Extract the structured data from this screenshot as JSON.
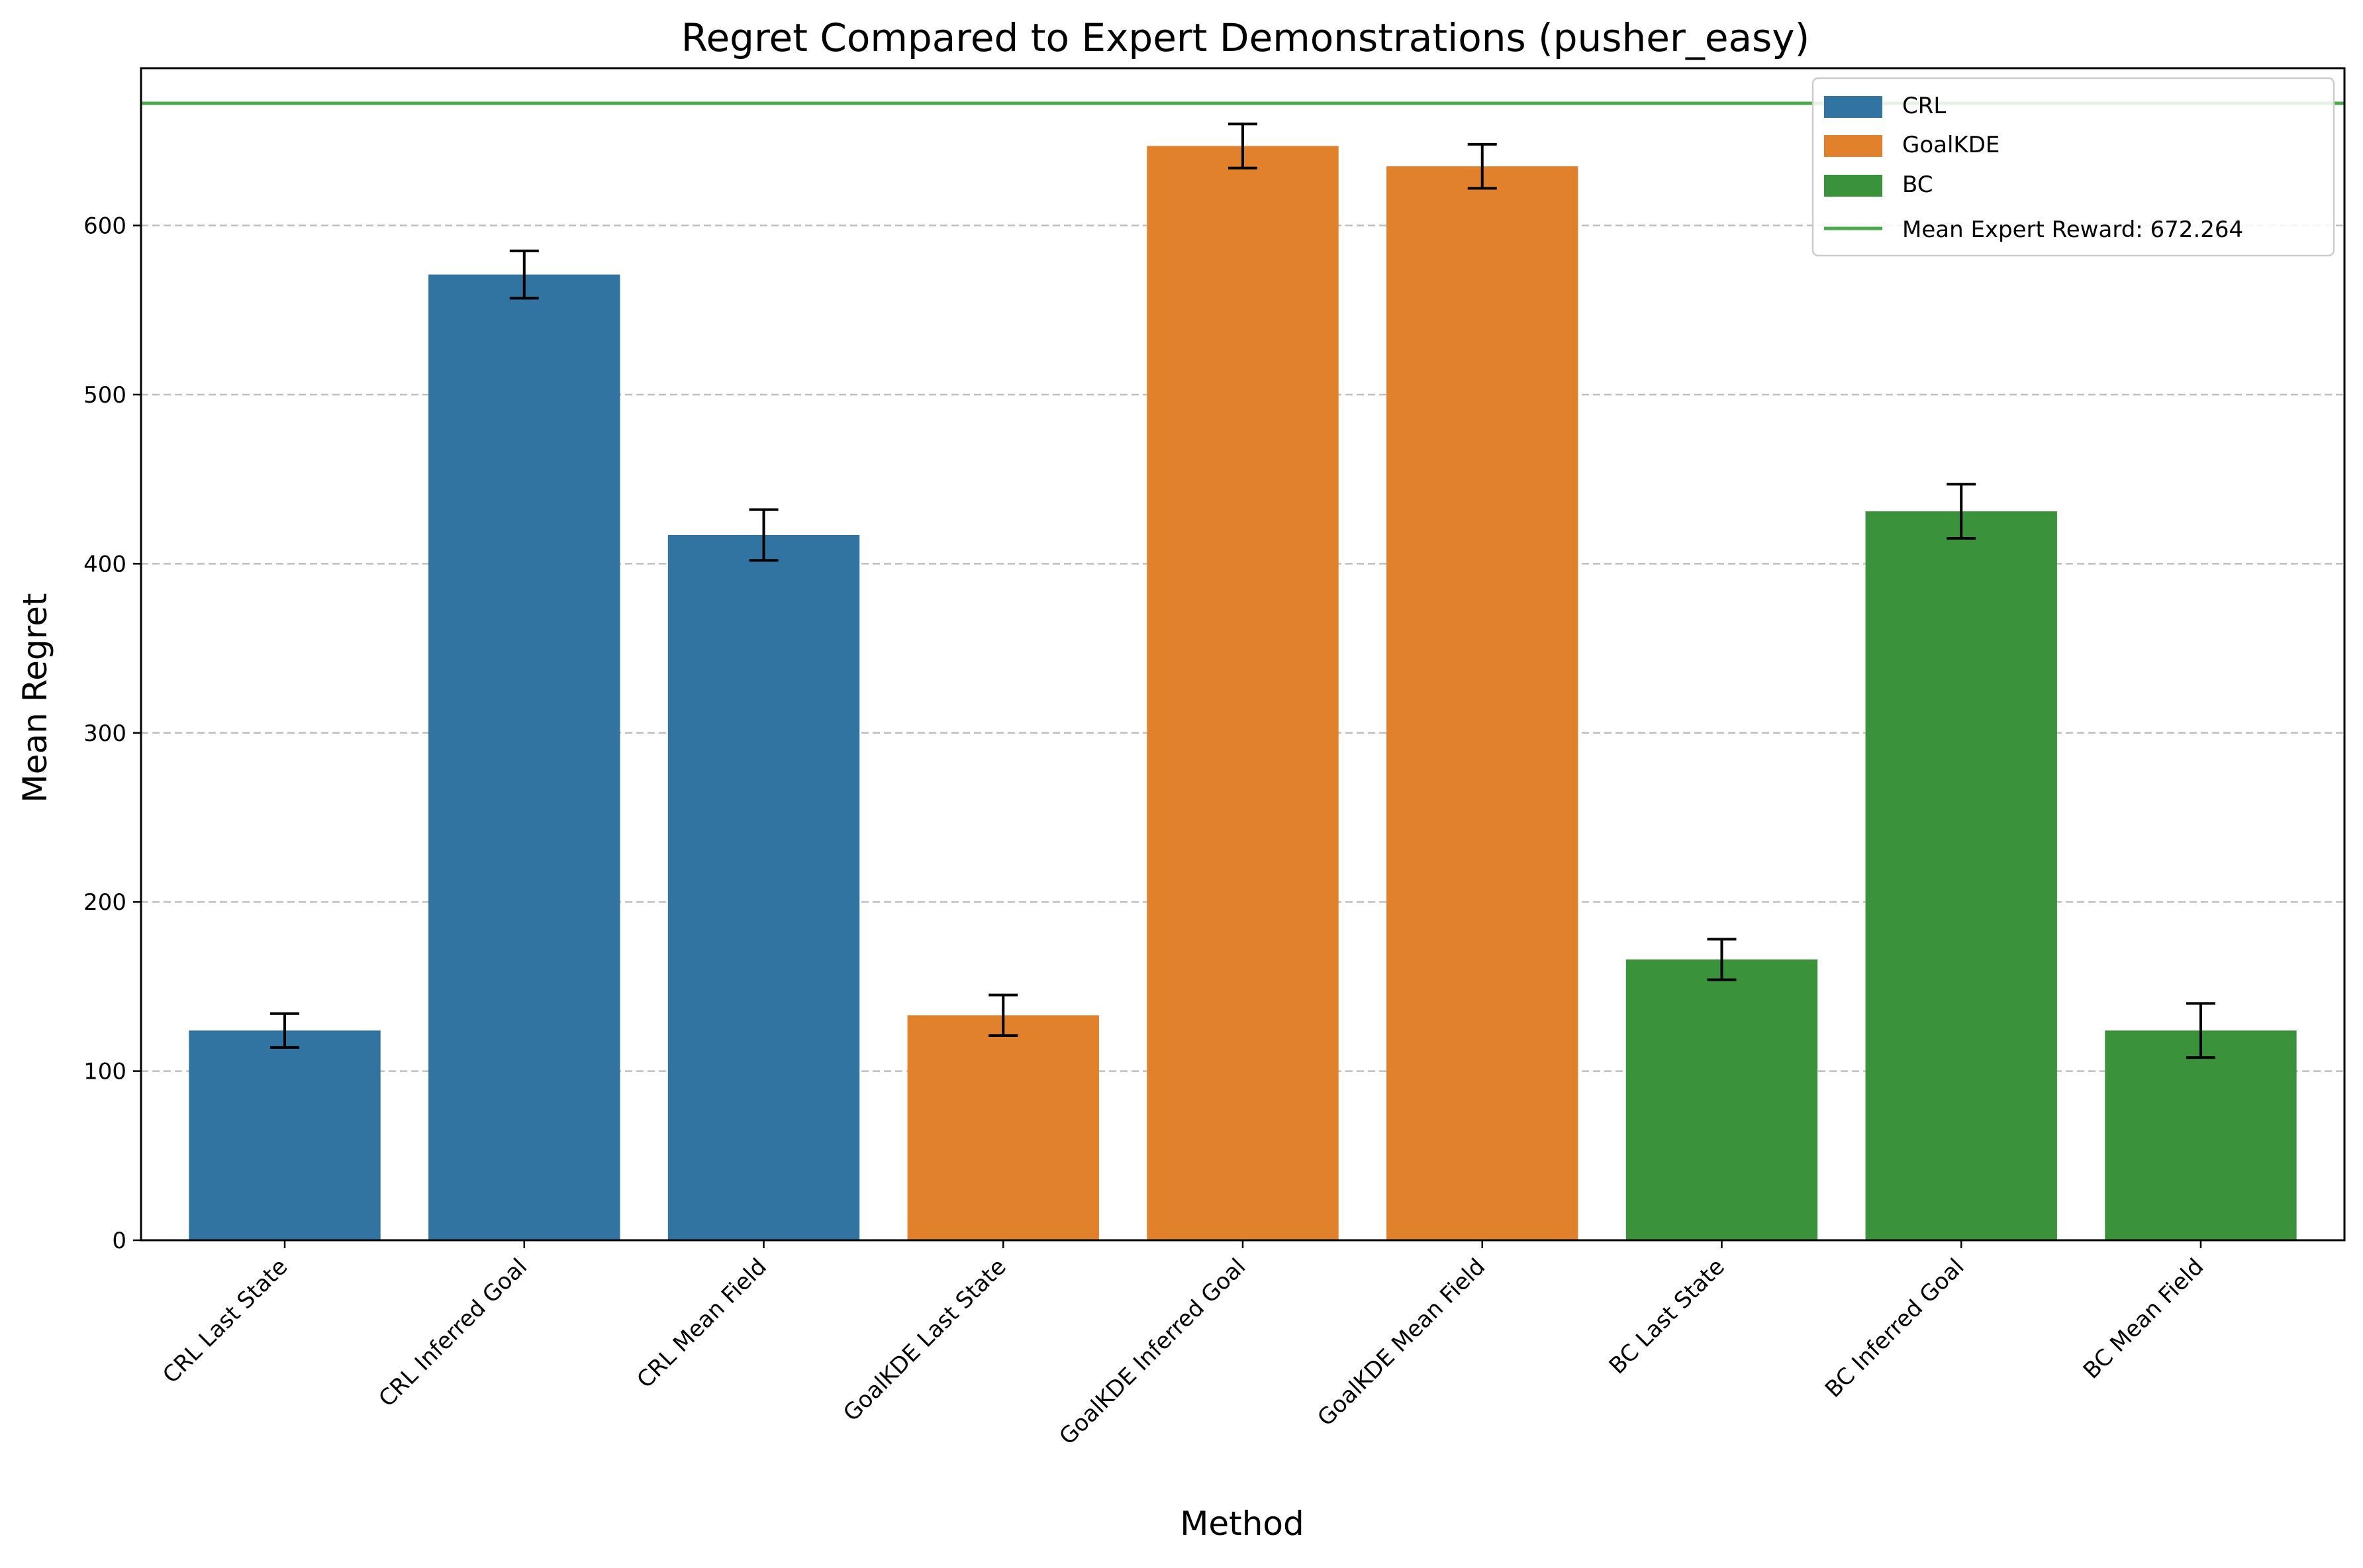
{
  "chart_data": {
    "type": "bar",
    "title": "Regret Compared to Expert Demonstrations (pusher_easy)",
    "xlabel": "Method",
    "ylabel": "Mean Regret",
    "ylim": [
      0,
      693
    ],
    "yticks": [
      0,
      100,
      200,
      300,
      400,
      500,
      600
    ],
    "grid": "y-dashed",
    "categories": [
      "CRL Last State",
      "CRL Inferred Goal",
      "CRL Mean Field",
      "GoalKDE Last State",
      "GoalKDE Inferred Goal",
      "GoalKDE Mean Field",
      "BC Last State",
      "BC Inferred Goal",
      "BC Mean Field"
    ],
    "values": [
      124,
      571,
      417,
      133,
      647,
      635,
      166,
      431,
      124
    ],
    "errors": [
      10,
      14,
      15,
      12,
      13,
      13,
      12,
      16,
      16
    ],
    "groups": [
      "CRL",
      "CRL",
      "CRL",
      "GoalKDE",
      "GoalKDE",
      "GoalKDE",
      "BC",
      "BC",
      "BC"
    ],
    "legend": {
      "placement": "top-right",
      "entries": [
        {
          "label": "CRL",
          "color": "#3274a1"
        },
        {
          "label": "GoalKDE",
          "color": "#e1812c"
        },
        {
          "label": "BC",
          "color": "#3a923a"
        },
        {
          "label": "Mean Expert Reward: 672.264",
          "color": "#4aaa4a",
          "kind": "line"
        }
      ]
    },
    "reference_line": {
      "value": 672.264,
      "color": "#4aaa4a"
    },
    "colors": {
      "CRL": "#3274a1",
      "GoalKDE": "#e1812c",
      "BC": "#3a923a"
    }
  }
}
